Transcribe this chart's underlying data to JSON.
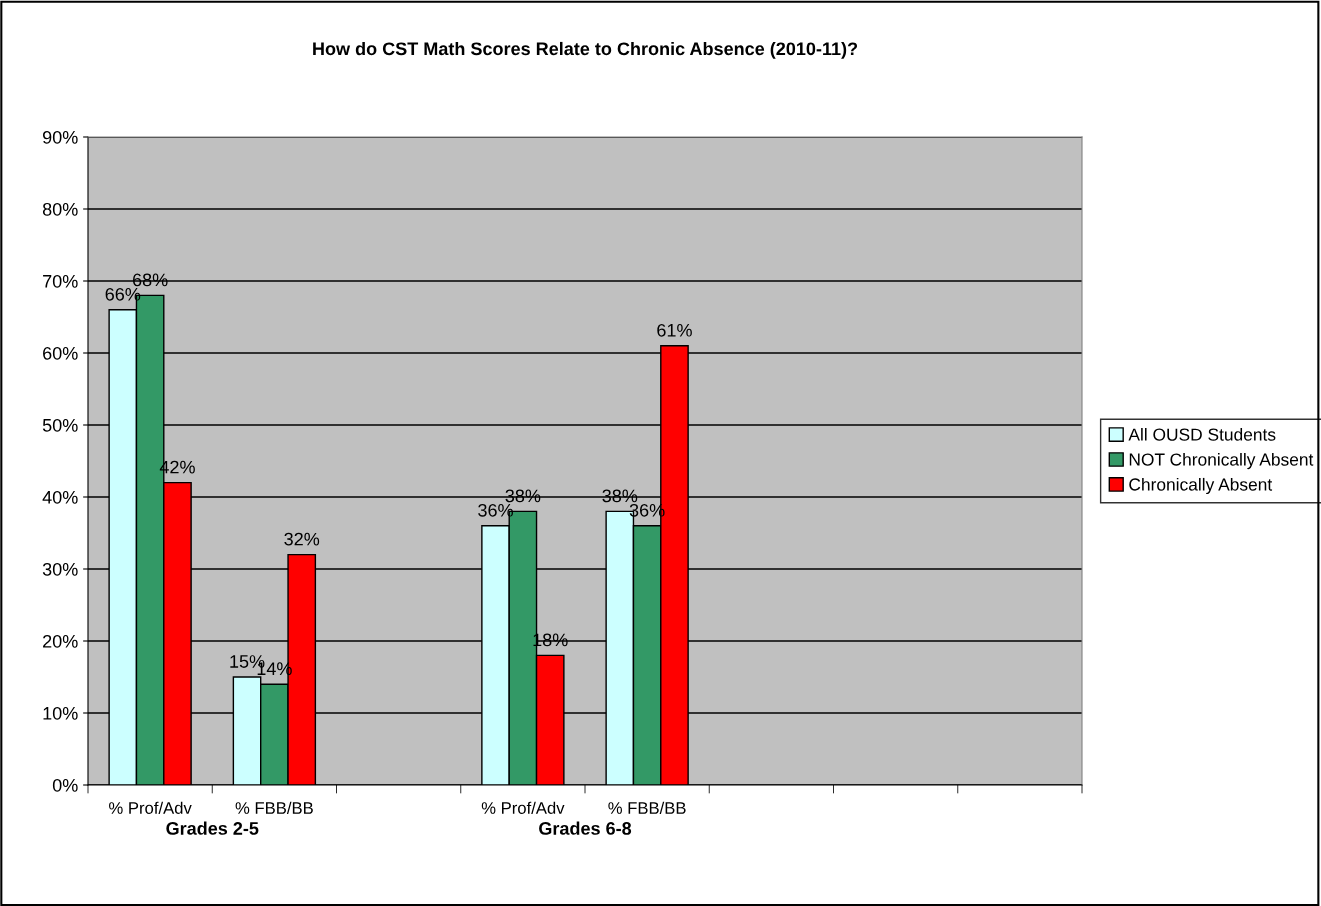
{
  "chart_data": {
    "type": "bar",
    "title": "How do CST Math Scores Relate to Chronic Absence (2010-11)?",
    "categories": [
      "% Prof/Adv",
      "% FBB/BB",
      null,
      "% Prof/Adv",
      "% FBB/BB",
      null,
      null,
      null
    ],
    "series": [
      {
        "name": "All OUSD Students",
        "color": "#ccffff",
        "values": [
          66,
          15,
          null,
          36,
          38,
          null,
          null,
          null
        ],
        "value_labels": [
          "66%",
          "15%",
          null,
          "36%",
          "38%",
          null,
          null,
          null
        ]
      },
      {
        "name": "NOT Chronically Absent",
        "color": "#339966",
        "values": [
          68,
          14,
          null,
          38,
          36,
          null,
          null,
          null
        ],
        "value_labels": [
          "68%",
          "14%",
          null,
          "38%",
          "36%",
          null,
          null,
          null
        ]
      },
      {
        "name": "Chronically Absent",
        "color": "#ff0000",
        "values": [
          42,
          32,
          null,
          18,
          61,
          null,
          null,
          null
        ],
        "value_labels": [
          "42%",
          "32%",
          null,
          "18%",
          "61%",
          null,
          null,
          null
        ]
      }
    ],
    "ylim": [
      0,
      90
    ],
    "yticks": [
      {
        "value": 0,
        "label": "0%"
      },
      {
        "value": 10,
        "label": "10%"
      },
      {
        "value": 20,
        "label": "20%"
      },
      {
        "value": 30,
        "label": "30%"
      },
      {
        "value": 40,
        "label": "40%"
      },
      {
        "value": 50,
        "label": "50%"
      },
      {
        "value": 60,
        "label": "60%"
      },
      {
        "value": 70,
        "label": "70%"
      },
      {
        "value": 80,
        "label": "80%"
      },
      {
        "value": 90,
        "label": "90%"
      }
    ],
    "grid": "y",
    "legend": "right",
    "annotations": [
      "Grades 2-5",
      "Grades 6-8"
    ]
  }
}
